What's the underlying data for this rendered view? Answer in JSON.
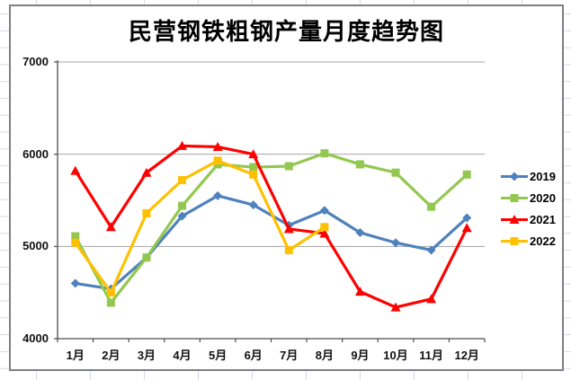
{
  "chart_data": {
    "type": "line",
    "title": "民营钢铁粗钢产量月度趋势图",
    "categories": [
      "1月",
      "2月",
      "3月",
      "4月",
      "5月",
      "6月",
      "7月",
      "8月",
      "9月",
      "10月",
      "11月",
      "12月"
    ],
    "series": [
      {
        "name": "2019",
        "color": "#4F81BD",
        "marker": "diamond",
        "values": [
          4600,
          4540,
          4880,
          5330,
          5550,
          5450,
          5230,
          5390,
          5150,
          5040,
          4960,
          5310
        ]
      },
      {
        "name": "2020",
        "color": "#92C850",
        "marker": "square",
        "values": [
          5110,
          4390,
          4880,
          5440,
          5890,
          5860,
          5870,
          6010,
          5890,
          5800,
          5430,
          5780
        ]
      },
      {
        "name": "2021",
        "color": "#FF0000",
        "marker": "triangle",
        "values": [
          5820,
          5210,
          5800,
          6090,
          6080,
          6000,
          5190,
          5140,
          4510,
          4340,
          4430,
          5200
        ]
      },
      {
        "name": "2022",
        "color": "#FFC000",
        "marker": "square",
        "values": [
          5040,
          4500,
          5360,
          5720,
          5930,
          5780,
          4960,
          5210
        ]
      }
    ],
    "y_axis": {
      "min": 4000,
      "max": 7000,
      "step": 1000,
      "tick_labels": [
        "4000",
        "5000",
        "6000",
        "7000"
      ]
    },
    "x_axis": {
      "tick_labels": [
        "1月",
        "2月",
        "3月",
        "4月",
        "5月",
        "6月",
        "7月",
        "8月",
        "9月",
        "10月",
        "11月",
        "12月"
      ]
    },
    "legend": {
      "position": "right",
      "entries": [
        "2019",
        "2020",
        "2021",
        "2022"
      ]
    },
    "grid": true,
    "ylim": [
      4000,
      7000
    ]
  },
  "colors": {
    "gridline": "#A6A6A6",
    "axis": "#4d4d4d",
    "chart_border": "#7f7f7f",
    "sheet_grid": "#d4dbe7"
  }
}
